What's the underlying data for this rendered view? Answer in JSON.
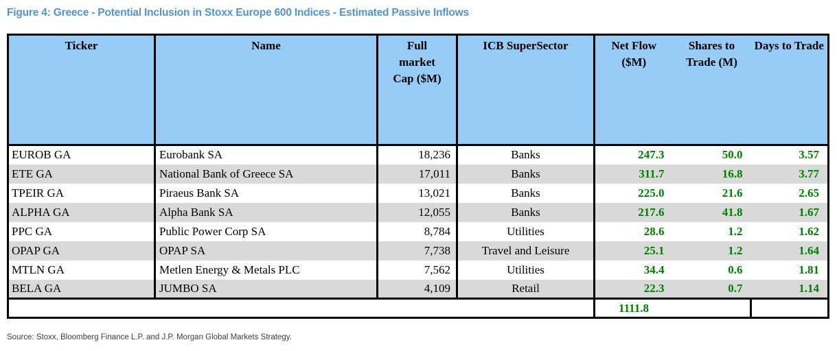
{
  "title": "Figure 4: Greece - Potential Inclusion in Stoxx Europe 600 Indices - Estimated Passive Inflows",
  "source": "Source: Stoxx, Bloomberg Finance L.P. and J.P. Morgan Global Markets Strategy.",
  "colors": {
    "title_blue": "#5095D2",
    "header_bg": "#99CBF7",
    "row_alt_bg": "#D9D9D9",
    "value_green": "#008000",
    "border_black": "#000000"
  },
  "table": {
    "headers": [
      {
        "id": "ticker",
        "label": "Ticker"
      },
      {
        "id": "name",
        "label": "Name"
      },
      {
        "id": "cap",
        "label": "Full market Cap ($M)"
      },
      {
        "id": "icb",
        "label": "ICB SuperSector"
      },
      {
        "id": "netflow",
        "label": "Net Flow ($M)",
        "group": "first"
      },
      {
        "id": "shares",
        "label": "Shares to Trade (M)",
        "group": "mid"
      },
      {
        "id": "days",
        "label": "Days to Trade",
        "group": "last"
      }
    ],
    "rows": [
      {
        "ticker": "EUROB GA",
        "name": "Eurobank SA",
        "cap": "18,236",
        "icb": "Banks",
        "netflow": "247.3",
        "shares": "50.0",
        "days": "3.57"
      },
      {
        "ticker": "ETE GA",
        "name": "National Bank of Greece SA",
        "cap": "17,011",
        "icb": "Banks",
        "netflow": "311.7",
        "shares": "16.8",
        "days": "3.77"
      },
      {
        "ticker": "TPEIR GA",
        "name": "Piraeus Bank SA",
        "cap": "13,021",
        "icb": "Banks",
        "netflow": "225.0",
        "shares": "21.6",
        "days": "2.65"
      },
      {
        "ticker": "ALPHA GA",
        "name": "Alpha Bank SA",
        "cap": "12,055",
        "icb": "Banks",
        "netflow": "217.6",
        "shares": "41.8",
        "days": "1.67"
      },
      {
        "ticker": "PPC GA",
        "name": "Public Power Corp SA",
        "cap": "8,784",
        "icb": "Utilities",
        "netflow": "28.6",
        "shares": "1.2",
        "days": "1.62"
      },
      {
        "ticker": "OPAP GA",
        "name": "OPAP SA",
        "cap": "7,738",
        "icb": "Travel and Leisure",
        "netflow": "25.1",
        "shares": "1.2",
        "days": "1.64"
      },
      {
        "ticker": "MTLN GA",
        "name": "Metlen Energy & Metals PLC",
        "cap": "7,562",
        "icb": "Utilities",
        "netflow": "34.4",
        "shares": "0.6",
        "days": "1.81"
      },
      {
        "ticker": "BELA GA",
        "name": "JUMBO SA",
        "cap": "4,109",
        "icb": "Retail",
        "netflow": "22.3",
        "shares": "0.7",
        "days": "1.14"
      }
    ],
    "total_net_flow": "1111.8"
  }
}
